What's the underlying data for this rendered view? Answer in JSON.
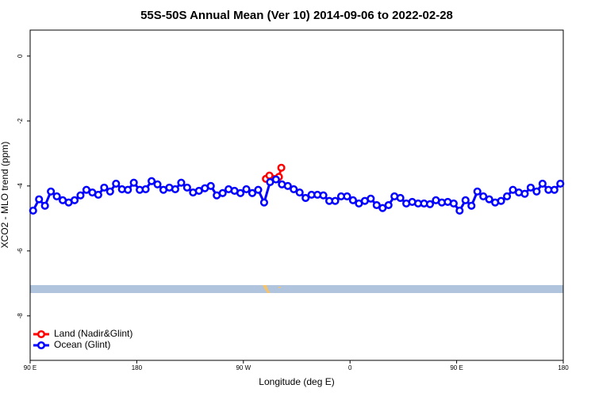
{
  "chart_data": {
    "type": "line",
    "title": "55S-50S Annual Mean (Ver 10)   2014-09-06 to 2022-02-28",
    "x_label": "Longitude (deg E)",
    "y_label": "XCO2 - MLO trend (ppm)",
    "xlim": [
      90,
      540
    ],
    "ylim": [
      -9.37,
      0.8
    ],
    "xticks": [
      {
        "value": 90,
        "label": "90 E"
      },
      180,
      {
        "value": 270,
        "label": "90 W"
      },
      {
        "value": 360,
        "label": "0"
      },
      {
        "value": 450,
        "label": "90 E"
      },
      {
        "value": 540,
        "label": "180"
      }
    ],
    "yticks": [
      0,
      -2,
      -4,
      -6,
      -8
    ],
    "legend": "bottom-left",
    "series": [
      {
        "name": "Land (Nadir&Glint)",
        "color": "#ff0000",
        "x": [
          289,
          292,
          300,
          302
        ],
        "values": [
          -3.78,
          -3.68,
          -3.72,
          -3.44
        ]
      },
      {
        "name": "Ocean (Glint)",
        "color": "#0000ff",
        "x": [
          92.5,
          97.5,
          102.5,
          107.5,
          112.5,
          117.5,
          122.5,
          127.5,
          132.5,
          137.5,
          142.5,
          147.5,
          152.5,
          157.5,
          162.5,
          167.5,
          172.5,
          177.5,
          182.5,
          187.5,
          192.5,
          197.5,
          202.5,
          207.5,
          212.5,
          217.5,
          222.5,
          227.5,
          232.5,
          237.5,
          242.5,
          247.5,
          252.5,
          257.5,
          262.5,
          267.5,
          272.5,
          277.5,
          282.5,
          287.5,
          292.5,
          297.5,
          302.5,
          307.5,
          312.5,
          317.5,
          322.5,
          327.5,
          332.5,
          337.5,
          342.5,
          347.5,
          352.5,
          357.5,
          362.5,
          367.5,
          372.5,
          377.5,
          382.5,
          387.5,
          392.5,
          397.5,
          402.5,
          407.5,
          412.5,
          417.5,
          422.5,
          427.5,
          432.5,
          437.5,
          442.5,
          447.5,
          452.5,
          457.5,
          462.5,
          467.5,
          472.5,
          477.5,
          482.5,
          487.5,
          492.5,
          497.5,
          502.5,
          507.5,
          512.5,
          517.5,
          522.5,
          527.5,
          532.5,
          537.5
        ],
        "values": [
          -4.76,
          -4.41,
          -4.61,
          -4.17,
          -4.32,
          -4.44,
          -4.51,
          -4.44,
          -4.29,
          -4.12,
          -4.2,
          -4.27,
          -4.05,
          -4.17,
          -3.93,
          -4.1,
          -4.12,
          -3.9,
          -4.12,
          -4.1,
          -3.85,
          -3.95,
          -4.12,
          -4.05,
          -4.1,
          -3.9,
          -4.05,
          -4.2,
          -4.15,
          -4.07,
          -4.0,
          -4.29,
          -4.22,
          -4.1,
          -4.15,
          -4.22,
          -4.1,
          -4.22,
          -4.12,
          -4.51,
          -3.88,
          -3.8,
          -3.95,
          -4.0,
          -4.1,
          -4.2,
          -4.37,
          -4.27,
          -4.27,
          -4.29,
          -4.46,
          -4.46,
          -4.32,
          -4.32,
          -4.44,
          -4.54,
          -4.46,
          -4.39,
          -4.59,
          -4.68,
          -4.59,
          -4.32,
          -4.37,
          -4.54,
          -4.49,
          -4.54,
          -4.54,
          -4.56,
          -4.44,
          -4.51,
          -4.49,
          -4.54,
          -4.76,
          -4.44,
          -4.61,
          -4.17,
          -4.32,
          -4.41,
          -4.51,
          -4.46,
          -4.32,
          -4.12,
          -4.2,
          -4.24,
          -4.05,
          -4.17,
          -3.93,
          -4.12,
          -4.12,
          -3.93
        ]
      }
    ]
  }
}
